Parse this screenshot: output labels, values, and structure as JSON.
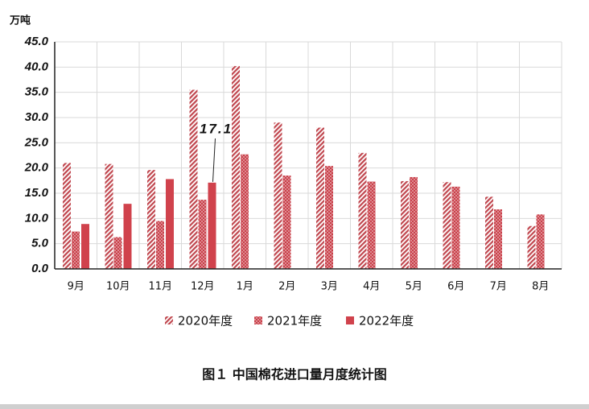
{
  "chart_data": {
    "type": "bar",
    "title": "图１  中国棉花进口量月度统计图",
    "y_label": "万吨",
    "categories": [
      "9月",
      "10月",
      "11月",
      "12月",
      "1月",
      "2月",
      "3月",
      "4月",
      "5月",
      "6月",
      "7月",
      "8月"
    ],
    "series": [
      {
        "name": "2020年度",
        "color": "#c0464e",
        "pattern": "hatch",
        "values": [
          21.0,
          20.8,
          19.6,
          35.5,
          40.2,
          29.0,
          28.0,
          23.0,
          17.4,
          17.2,
          14.3,
          8.5
        ]
      },
      {
        "name": "2021年度",
        "color": "#c9404a",
        "pattern": "dots",
        "values": [
          7.4,
          6.3,
          9.5,
          13.7,
          22.7,
          18.5,
          20.4,
          17.3,
          18.2,
          16.3,
          11.8,
          10.8
        ]
      },
      {
        "name": "2022年度",
        "color": "#d0424c",
        "pattern": "solid",
        "values": [
          8.9,
          12.9,
          17.8,
          17.1,
          null,
          null,
          null,
          null,
          null,
          null,
          null,
          null
        ]
      }
    ],
    "ylim": [
      0,
      45
    ],
    "yticks": [
      {
        "value": 0,
        "label": "0.0"
      },
      {
        "value": 5,
        "label": "5.0"
      },
      {
        "value": 10,
        "label": "10.0"
      },
      {
        "value": 15,
        "label": "15.0"
      },
      {
        "value": 20,
        "label": "20.0"
      },
      {
        "value": 25,
        "label": "25.0"
      },
      {
        "value": 30,
        "label": "30.0"
      },
      {
        "value": 35,
        "label": "35.0"
      },
      {
        "value": 40,
        "label": "40.0"
      },
      {
        "value": 45,
        "label": "45.0"
      }
    ],
    "grid": true,
    "annotation": {
      "text": "17.1",
      "series": 2,
      "index": 3
    }
  }
}
